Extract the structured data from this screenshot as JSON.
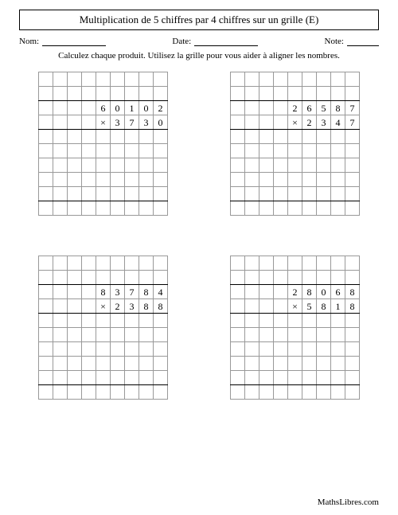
{
  "title": "Multiplication de 5 chiffres par 4 chiffres sur un grille (E)",
  "meta": {
    "name_label": "Nom:",
    "date_label": "Date:",
    "note_label": "Note:"
  },
  "instructions": "Calculez chaque produit. Utilisez la grille pour vous aider à aligner les nombres.",
  "blank_widths": {
    "name": 80,
    "date": 80,
    "note": 40
  },
  "grid_config": {
    "cols": 9,
    "top_blank_rows": 2,
    "work_rows": 5,
    "cell_size": 18,
    "cell_border_color": "#999999",
    "thick_border_color": "#000000",
    "font_size": 12,
    "mult_sign": "×"
  },
  "problems": [
    {
      "multiplicand": "60102",
      "multiplier": "3730"
    },
    {
      "multiplicand": "26587",
      "multiplier": "2347"
    },
    {
      "multiplicand": "83784",
      "multiplier": "2388"
    },
    {
      "multiplicand": "28068",
      "multiplier": "5818"
    }
  ],
  "footer": "MathsLibres.com",
  "colors": {
    "page_bg": "#ffffff",
    "text": "#000000"
  }
}
